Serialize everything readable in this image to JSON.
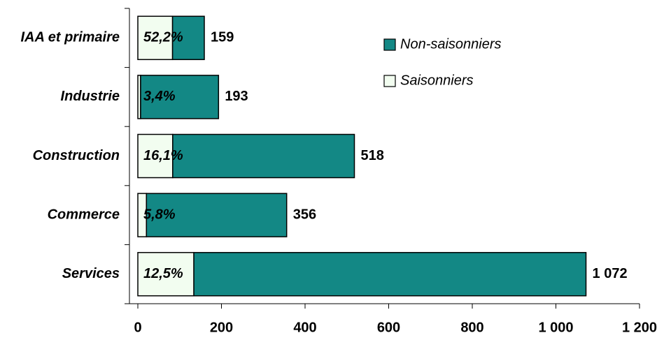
{
  "chart_data": {
    "type": "stacked-bar-horizontal",
    "categories": [
      "IAA et primaire",
      "Industrie",
      "Construction",
      "Commerce",
      "Services"
    ],
    "series": [
      {
        "name": "Non-saisonniers",
        "color": "#138885",
        "values": [
          76,
          186.4,
          434.6,
          335.4,
          938
        ]
      },
      {
        "name": "Saisonniers",
        "color": "#f2fdf0",
        "values": [
          83,
          6.6,
          83.4,
          20.6,
          134
        ]
      }
    ],
    "totals": [
      159,
      193,
      518,
      356,
      1072
    ],
    "total_labels": [
      "159",
      "193",
      "518",
      "356",
      "1 072"
    ],
    "shares": [
      52.2,
      3.4,
      16.1,
      5.8,
      12.5
    ],
    "share_labels": [
      "52,2%",
      "3,4%",
      "16,1%",
      "5,8%",
      "12,5%"
    ],
    "xlim": [
      0,
      1200
    ],
    "xticks": [
      0,
      200,
      400,
      600,
      800,
      {
        "value": 1000,
        "label": "1 000"
      },
      {
        "value": 1200,
        "label": "1 200"
      }
    ],
    "legend": "upper-right"
  }
}
